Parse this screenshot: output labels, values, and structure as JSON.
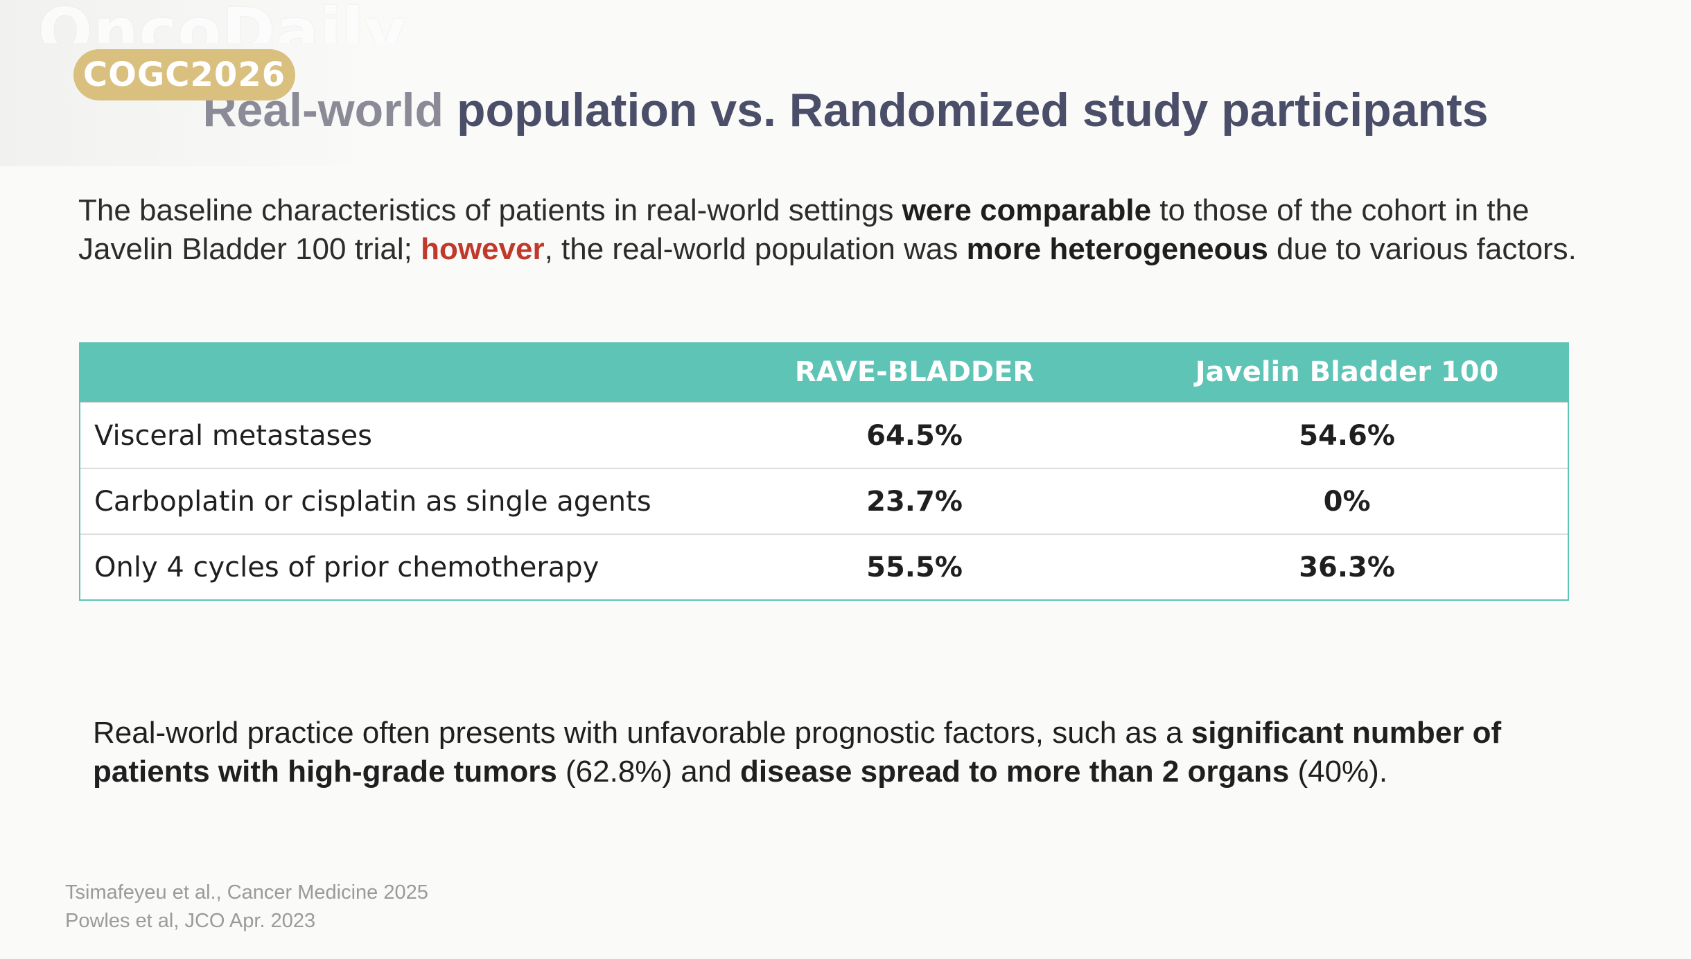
{
  "watermark": {
    "logo_text": "OncoDaily"
  },
  "badge": {
    "label": "COGC2026"
  },
  "title": {
    "part1": "Real-world",
    "part2": " population vs. Randomized study participants"
  },
  "intro": {
    "t1": "The baseline characteristics of patients in real-world settings ",
    "b1": "were comparable",
    "t2": " to those of the cohort in the Javelin Bladder 100 trial; ",
    "red": "however",
    "t3": ", the real-world population was ",
    "b2": "more heterogeneous",
    "t4": " due to various factors."
  },
  "table": {
    "columns": [
      "",
      "RAVE-BLADDER",
      "Javelin Bladder 100"
    ],
    "rows": [
      {
        "label": "Visceral metastases",
        "rave": "64.5%",
        "javelin": "54.6%"
      },
      {
        "label": "Carboplatin or cisplatin as single agents",
        "rave": "23.7%",
        "javelin": "0%"
      },
      {
        "label": "Only 4 cycles of prior chemotherapy",
        "rave": "55.5%",
        "javelin": "36.3%"
      }
    ]
  },
  "summary": {
    "t1": "Real-world practice often presents with unfavorable prognostic factors, such as a ",
    "b1": "significant number of patients with high-grade tumors",
    "t2": " (62.8%) and ",
    "b2": "disease spread to more than 2 organs",
    "t3": " (40%)."
  },
  "references": [
    "Tsimafeyeu et al., Cancer Medicine 2025",
    "Powles et al, JCO Apr. 2023"
  ],
  "colors": {
    "table_header": "#5ec4b6",
    "badge": "#d9c07f",
    "title": "#4a4e68",
    "highlight_red": "#c0392b"
  }
}
